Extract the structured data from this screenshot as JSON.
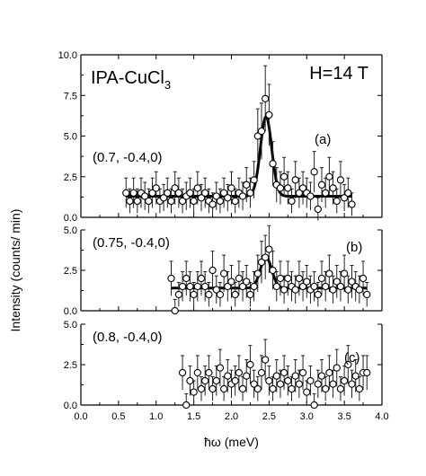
{
  "chart_data": [
    {
      "panel": "a",
      "type": "scatter",
      "title": "IPA-CuCl3",
      "field_label": "H=14 T",
      "panel_label": "(a)",
      "q_label": "(0.7, -0.4,0)",
      "ylim": [
        0,
        10
      ],
      "yticks": [
        "0.0",
        "2.5",
        "5.0",
        "7.5",
        "10.0"
      ],
      "x": [
        0.6,
        0.65,
        0.7,
        0.75,
        0.8,
        0.85,
        0.9,
        0.95,
        1.0,
        1.05,
        1.1,
        1.15,
        1.2,
        1.25,
        1.3,
        1.35,
        1.4,
        1.45,
        1.5,
        1.55,
        1.6,
        1.65,
        1.7,
        1.75,
        1.8,
        1.85,
        1.9,
        1.95,
        2.0,
        2.05,
        2.1,
        2.15,
        2.2,
        2.25,
        2.3,
        2.35,
        2.4,
        2.45,
        2.5,
        2.55,
        2.6,
        2.65,
        2.7,
        2.75,
        2.8,
        2.85,
        2.9,
        2.95,
        3.0,
        3.05,
        3.1,
        3.15,
        3.2,
        3.25,
        3.3,
        3.35,
        3.4,
        3.45,
        3.5,
        3.55,
        3.6
      ],
      "y": [
        1.5,
        1.0,
        1.5,
        1.0,
        1.5,
        1.3,
        1.0,
        1.5,
        1.8,
        1.0,
        1.2,
        1.5,
        1.0,
        1.8,
        1.5,
        1.0,
        1.3,
        1.5,
        1.0,
        1.8,
        1.2,
        1.5,
        1.0,
        0.8,
        1.3,
        1.0,
        1.5,
        1.2,
        1.8,
        1.0,
        1.5,
        1.3,
        2.0,
        1.5,
        2.3,
        5.0,
        5.3,
        7.3,
        6.3,
        3.3,
        2.0,
        1.8,
        2.5,
        1.8,
        1.0,
        2.3,
        1.5,
        1.8,
        1.5,
        1.3,
        2.8,
        0.5,
        2.0,
        1.5,
        2.5,
        1.8,
        1.0,
        2.3,
        1.2,
        1.5,
        0.8
      ],
      "fit": {
        "baseline": 1.3,
        "center": 2.46,
        "amplitude": 4.9,
        "sigma": 0.075
      }
    },
    {
      "panel": "b",
      "type": "scatter",
      "panel_label": "(b)",
      "q_label": "(0.75, -0.4,0)",
      "ylim": [
        0,
        5
      ],
      "yticks": [
        "0.0",
        "2.5",
        "5.0"
      ],
      "x": [
        1.2,
        1.25,
        1.3,
        1.35,
        1.4,
        1.45,
        1.5,
        1.55,
        1.6,
        1.65,
        1.7,
        1.75,
        1.8,
        1.85,
        1.9,
        1.95,
        2.0,
        2.05,
        2.1,
        2.15,
        2.2,
        2.25,
        2.3,
        2.35,
        2.4,
        2.45,
        2.5,
        2.55,
        2.6,
        2.65,
        2.7,
        2.75,
        2.8,
        2.85,
        2.9,
        2.95,
        3.0,
        3.05,
        3.1,
        3.15,
        3.2,
        3.25,
        3.3,
        3.35,
        3.4,
        3.45,
        3.5,
        3.55,
        3.6,
        3.65,
        3.7,
        3.75,
        3.8
      ],
      "y": [
        2.0,
        0.0,
        1.0,
        1.5,
        2.0,
        1.5,
        1.0,
        1.5,
        2.0,
        1.5,
        1.0,
        2.5,
        1.3,
        1.0,
        2.3,
        1.5,
        1.8,
        1.0,
        2.0,
        1.5,
        1.8,
        1.0,
        1.5,
        2.3,
        3.0,
        3.3,
        3.8,
        2.5,
        1.5,
        2.0,
        1.3,
        2.0,
        1.5,
        1.3,
        2.0,
        1.5,
        1.8,
        1.3,
        1.5,
        1.0,
        2.0,
        1.5,
        2.3,
        1.3,
        1.8,
        1.5,
        2.3,
        1.3,
        1.8,
        1.5,
        1.3,
        2.0,
        1.0
      ],
      "fit": {
        "baseline": 1.4,
        "center": 2.46,
        "amplitude": 1.9,
        "sigma": 0.075
      }
    },
    {
      "panel": "c",
      "type": "scatter",
      "panel_label": "(c)",
      "q_label": "(0.8, -0.4,0)",
      "ylim": [
        0,
        5
      ],
      "yticks": [
        "0.0",
        "2.5",
        "5.0"
      ],
      "xlabel": "ħω (meV)",
      "xticks": [
        "0.0",
        "0.5",
        "1.0",
        "1.5",
        "2.0",
        "2.5",
        "3.0",
        "3.5",
        "4.0"
      ],
      "xlim": [
        0,
        4
      ],
      "x": [
        1.35,
        1.4,
        1.45,
        1.5,
        1.55,
        1.6,
        1.65,
        1.7,
        1.75,
        1.8,
        1.85,
        1.9,
        1.95,
        2.0,
        2.05,
        2.1,
        2.15,
        2.2,
        2.25,
        2.3,
        2.35,
        2.4,
        2.45,
        2.5,
        2.55,
        2.6,
        2.65,
        2.7,
        2.75,
        2.8,
        2.85,
        2.9,
        2.95,
        3.0,
        3.05,
        3.1,
        3.15,
        3.2,
        3.25,
        3.3,
        3.35,
        3.4,
        3.45,
        3.5,
        3.55,
        3.6,
        3.65,
        3.7,
        3.75,
        3.8
      ],
      "y": [
        2.0,
        0.0,
        1.5,
        0.8,
        2.0,
        1.0,
        1.5,
        2.0,
        1.0,
        1.5,
        2.3,
        1.0,
        1.8,
        1.3,
        1.5,
        2.0,
        1.0,
        1.8,
        2.5,
        1.3,
        1.0,
        2.0,
        2.8,
        1.5,
        1.0,
        1.8,
        1.3,
        2.0,
        1.5,
        1.0,
        1.8,
        1.3,
        2.0,
        0.8,
        1.5,
        0.0,
        1.3,
        1.8,
        1.0,
        2.0,
        1.3,
        2.3,
        1.0,
        1.5,
        2.5,
        1.3,
        1.8,
        1.0,
        2.0,
        2.0
      ],
      "fit": null
    }
  ],
  "ylabel": "Intensity (counts/ min)"
}
